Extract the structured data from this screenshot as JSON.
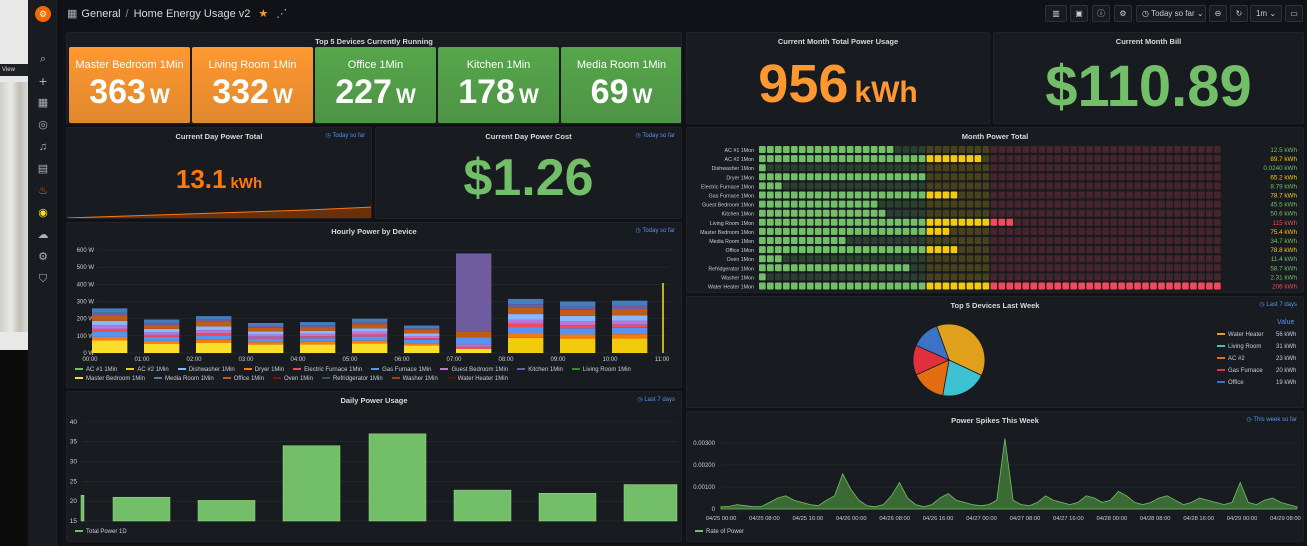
{
  "topbar": {
    "breadcrumb_root": "General",
    "breadcrumb_separator": "/",
    "dashboard_title": "Home Energy Usage v2",
    "time_range": "Today so far",
    "refresh_interval": "1m"
  },
  "left_strip": {
    "view_label": "View"
  },
  "top5_running": {
    "title": "Top 5 Devices Currently Running",
    "unit": "W",
    "tiles": [
      {
        "name": "Master Bedroom 1Min",
        "value": "363",
        "color": "#ff9830"
      },
      {
        "name": "Living Room 1Min",
        "value": "332",
        "color": "#ff9830"
      },
      {
        "name": "Office 1Min",
        "value": "227",
        "color": "#56a64b"
      },
      {
        "name": "Kitchen 1Min",
        "value": "178",
        "color": "#56a64b"
      },
      {
        "name": "Media Room 1Min",
        "value": "69",
        "color": "#56a64b"
      }
    ]
  },
  "month_usage": {
    "title": "Current Month Total Power Usage",
    "value": "956",
    "unit": "kWh",
    "color": "#ff9830"
  },
  "month_bill": {
    "title": "Current Month Bill",
    "value": "$110.89",
    "color": "#73bf69"
  },
  "day_total": {
    "title": "Current Day Power Total",
    "badge": "Today so far",
    "value": "13.1",
    "unit": "kWh",
    "color": "#ff780a"
  },
  "day_cost": {
    "title": "Current Day Power Cost",
    "badge": "Today so far",
    "value": "$1.26",
    "color": "#73bf69"
  },
  "month_power": {
    "title": "Month Power Total",
    "rows": [
      {
        "name": "AC #1 1Mon",
        "value": "12.5 kWh",
        "level": 0.29,
        "color": "#73bf69"
      },
      {
        "name": "AC #2 1Mon",
        "value": "89.7 kWh",
        "level": 0.49,
        "color": "#f2cc0c"
      },
      {
        "name": "Dishwasher 1Mon",
        "value": "0.0240 kWh",
        "level": 0.01,
        "color": "#73bf69"
      },
      {
        "name": "Dryer 1Mon",
        "value": "65.2 kWh",
        "level": 0.36,
        "color": "#f2cc0c"
      },
      {
        "name": "Electric Furnace 1Mon",
        "value": "8.79 kWh",
        "level": 0.05,
        "color": "#73bf69"
      },
      {
        "name": "Gas Furnace 1Mon",
        "value": "78.7 kWh",
        "level": 0.43,
        "color": "#f2cc0c"
      },
      {
        "name": "Guest Bedroom 1Mon",
        "value": "45.5 kWh",
        "level": 0.25,
        "color": "#73bf69"
      },
      {
        "name": "Kitchen 1Mon",
        "value": "50.6 kWh",
        "level": 0.28,
        "color": "#73bf69"
      },
      {
        "name": "Living Room 1Mon",
        "value": "115 kWh",
        "level": 0.56,
        "color": "#f2495c"
      },
      {
        "name": "Master Bedroom 1Mon",
        "value": "75.4 kWh",
        "level": 0.41,
        "color": "#f2cc0c"
      },
      {
        "name": "Media Room 1Mon",
        "value": "34.7 kWh",
        "level": 0.19,
        "color": "#73bf69"
      },
      {
        "name": "Office 1Mon",
        "value": "78.8 kWh",
        "level": 0.43,
        "color": "#f2cc0c"
      },
      {
        "name": "Oven 1Mon",
        "value": "11.4 kWh",
        "level": 0.06,
        "color": "#73bf69"
      },
      {
        "name": "Refridgerator 1Mon",
        "value": "58.7 kWh",
        "level": 0.32,
        "color": "#73bf69"
      },
      {
        "name": "Washer 1Mon",
        "value": "2.31 kWh",
        "level": 0.01,
        "color": "#73bf69"
      },
      {
        "name": "Water Heater 1Mon",
        "value": "206 kWh",
        "level": 1.0,
        "color": "#f2495c"
      }
    ]
  },
  "hourly": {
    "title": "Hourly Power by Device",
    "badge": "Today so far",
    "chart_data": {
      "type": "bar",
      "stacked": true,
      "categories": [
        "00:00",
        "01:00",
        "02:00",
        "03:00",
        "04:00",
        "05:00",
        "06:00",
        "07:00",
        "08:00",
        "09:00",
        "10:00",
        "11:00"
      ],
      "y_ticks": [
        "0 W",
        "100 W",
        "200 W",
        "300 W",
        "400 W",
        "500 W",
        "600 W"
      ],
      "ylim": [
        0,
        600
      ],
      "totals": [
        260,
        195,
        215,
        175,
        180,
        200,
        160,
        580,
        315,
        300,
        305,
        0
      ],
      "series": [
        {
          "name": "AC #1 1Min",
          "color": "#73bf69"
        },
        {
          "name": "AC #2 1Min",
          "color": "#f2cc0c"
        },
        {
          "name": "Dishwasher 1Min",
          "color": "#8ab8ff"
        },
        {
          "name": "Dryer 1Min",
          "color": "#ff780a"
        },
        {
          "name": "Electric Furnace 1Min",
          "color": "#f2495c"
        },
        {
          "name": "Gas Furnace 1Min",
          "color": "#5794f2"
        },
        {
          "name": "Guest Bedroom 1Min",
          "color": "#b877d9"
        },
        {
          "name": "Kitchen 1Min",
          "color": "#705da0"
        },
        {
          "name": "Living Room 1Min",
          "color": "#37872d"
        },
        {
          "name": "Master Bedroom 1Min",
          "color": "#fade2a"
        },
        {
          "name": "Media Room 1Min",
          "color": "#447ebc"
        },
        {
          "name": "Office 1Min",
          "color": "#c15c17"
        },
        {
          "name": "Oven 1Min",
          "color": "#890f02"
        },
        {
          "name": "Refridgerator 1Min",
          "color": "#2f575e"
        },
        {
          "name": "Washer 1Min",
          "color": "#99440a"
        },
        {
          "name": "Water Heater 1Min",
          "color": "#58140c"
        }
      ]
    }
  },
  "top5_week": {
    "title": "Top 5 Devices Last Week",
    "badge": "Last 7 days",
    "value_header": "Value",
    "chart_data": {
      "type": "pie",
      "slices": [
        {
          "name": "Water Heater",
          "value": 56,
          "label": "56 kWh",
          "color": "#e0a01b"
        },
        {
          "name": "Living Room",
          "value": 31,
          "label": "31 kWh",
          "color": "#3ec1d3"
        },
        {
          "name": "AC #2",
          "value": 23,
          "label": "23 kWh",
          "color": "#e36e12"
        },
        {
          "name": "Gas Furnace",
          "value": 20,
          "label": "20 kWh",
          "color": "#e0303e"
        },
        {
          "name": "Office",
          "value": 19,
          "label": "19 kWh",
          "color": "#3c72c7"
        }
      ]
    }
  },
  "daily": {
    "title": "Daily Power Usage",
    "badge": "Last 7 days",
    "chart_data": {
      "type": "bar",
      "values": [
        21.5,
        21,
        20.2,
        34,
        37,
        22.8,
        22,
        24.2
      ],
      "y_ticks": [
        "15",
        "20",
        "25",
        "30",
        "35",
        "40"
      ],
      "ylim": [
        15,
        42
      ],
      "series_name": "Total Power 1D",
      "color": "#73bf69"
    }
  },
  "spikes": {
    "title": "Power Spikes This Week",
    "badge": "This week so far",
    "chart_data": {
      "type": "area",
      "series_name": "Rate of Power",
      "color": "#73bf69",
      "y_ticks": [
        "0",
        "0.00100",
        "0.00200",
        "0.00300"
      ],
      "ylim": [
        0,
        0.0035
      ],
      "x_ticks": [
        "04/25 00:00",
        "04/25 08:00",
        "04/25 16:00",
        "04/26 00:00",
        "04/26 08:00",
        "04/26 16:00",
        "04/27 00:00",
        "04/27 08:00",
        "04/27 16:00",
        "04/28 00:00",
        "04/28 08:00",
        "04/28 16:00",
        "04/29 00:00",
        "04/29 08:00"
      ],
      "values": [
        0.0001,
        0.00012,
        0.0002,
        0.00015,
        0.0001,
        0.00012,
        0.0003,
        0.0005,
        0.0006,
        0.0004,
        0.0003,
        0.0002,
        0.00015,
        0.0004,
        0.0006,
        0.0016,
        0.0009,
        0.0004,
        0.00015,
        0.0001,
        0.0002,
        0.0006,
        0.0012,
        0.0005,
        0.0002,
        0.0001,
        0.0002,
        0.0005,
        0.0007,
        0.0004,
        0.0003,
        0.0002,
        0.00015,
        0.0002,
        0.0004,
        0.0032,
        0.0004,
        0.0002,
        0.00015,
        0.0003,
        0.0006,
        0.0004,
        0.0003,
        0.0002,
        0.0003,
        0.0006,
        0.0005,
        0.0003,
        0.0004,
        0.0008,
        0.0006,
        0.0003,
        0.0002,
        0.0003,
        0.0005,
        0.0006,
        0.0004,
        0.0002,
        0.0003,
        0.0005,
        0.0004,
        0.0003,
        0.0002,
        0.0003,
        0.0012,
        0.0003,
        0.0002,
        0.0004,
        0.0005,
        0.0003,
        0.0002,
        0.0001
      ]
    }
  }
}
